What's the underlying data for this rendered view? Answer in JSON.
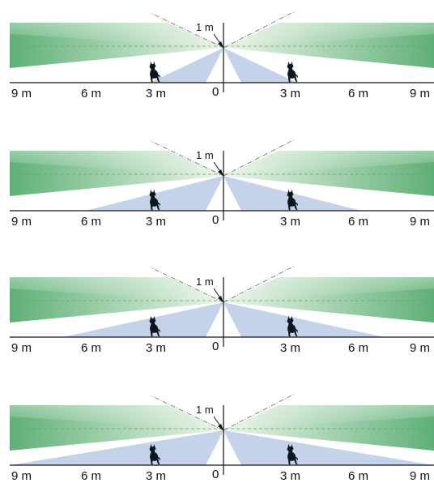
{
  "colors": {
    "green_light": "#eef6ea",
    "green_dark": "#5fb077",
    "blue_zone": "#c4d3e9",
    "axis": "#111111",
    "dashed": "#6a9d70",
    "pet": "#0d1520"
  },
  "height_label": "1 m",
  "x_axis": {
    "origin_label": "0",
    "left_labels": [
      "9 m",
      "6 m",
      "3 m"
    ],
    "right_labels": [
      "3 m",
      "6 m",
      "9 m"
    ]
  },
  "pet_icon": "dog-silhouette-icon",
  "panels": [
    {
      "id": "panel-1",
      "pet_zone_reach_m": 3.2
    },
    {
      "id": "panel-2",
      "pet_zone_reach_m": 6.0
    },
    {
      "id": "panel-3",
      "pet_zone_reach_m": 7.0
    },
    {
      "id": "panel-4",
      "pet_zone_reach_m": 9.6
    }
  ]
}
